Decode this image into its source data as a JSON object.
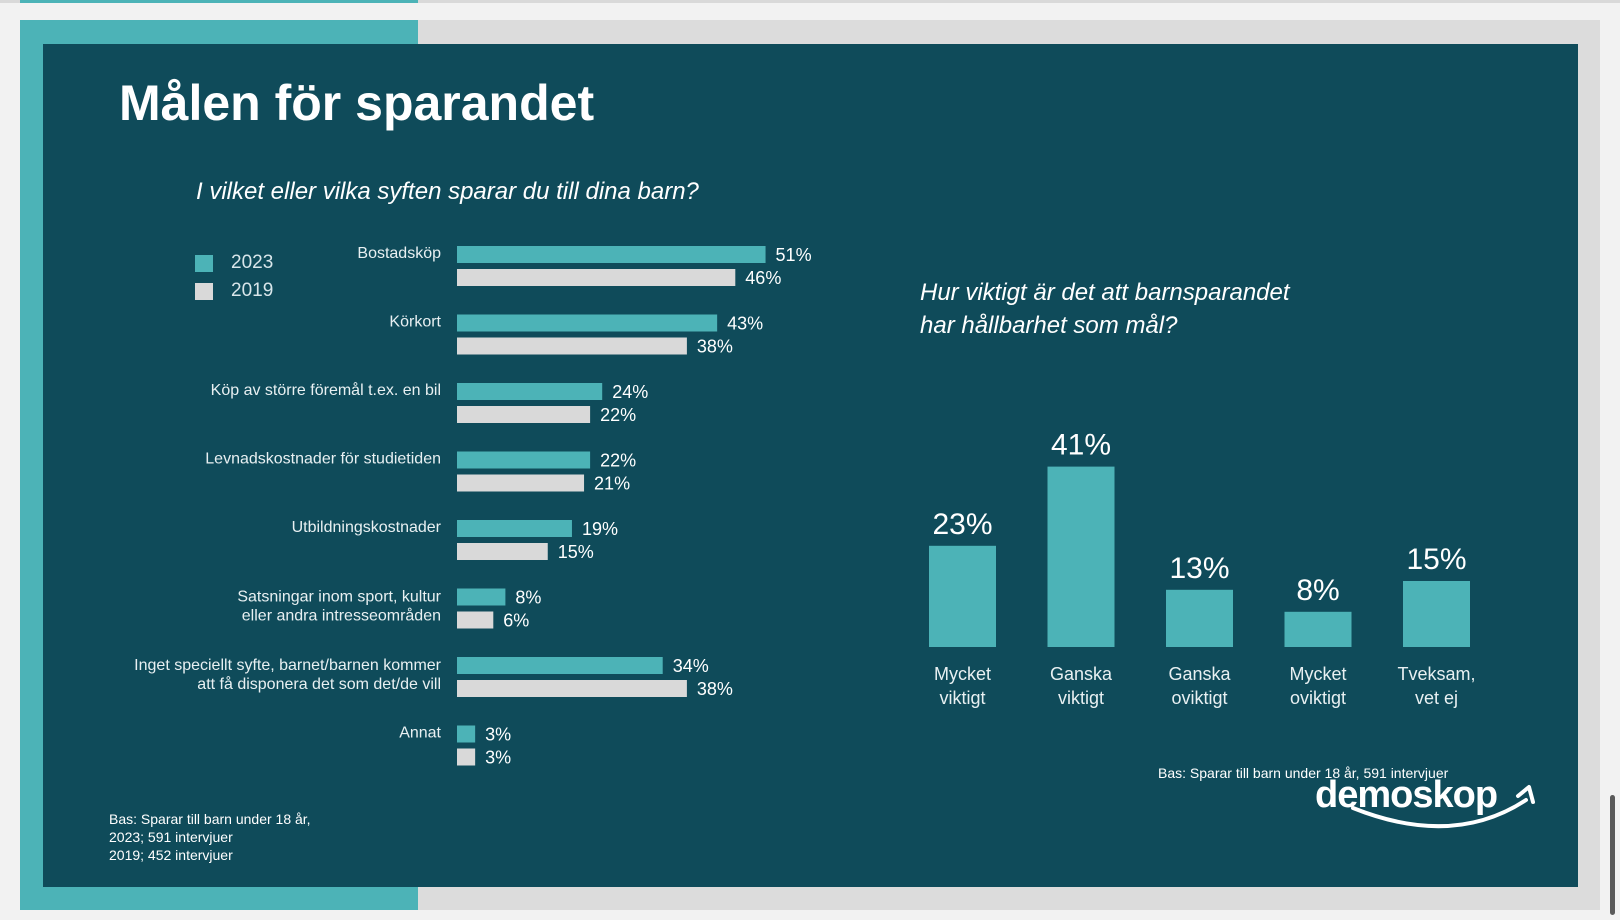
{
  "title": "Målen för sparandet",
  "colors": {
    "series_2023": "#4cb3b7",
    "series_2019": "#d9d9d9",
    "background": "#0f4b5a"
  },
  "chart_data": [
    {
      "type": "bar",
      "orientation": "horizontal",
      "title": "I vilket eller vilka syften sparar du till dina barn?",
      "categories": [
        [
          "Bostadsköp"
        ],
        [
          "Körkort"
        ],
        [
          "Köp av större föremål t.ex. en bil"
        ],
        [
          "Levnadskostnader för studietiden"
        ],
        [
          "Utbildningskostnader"
        ],
        [
          "Satsningar inom sport, kultur",
          "eller andra intresseområden"
        ],
        [
          "Inget speciellt syfte, barnet/barnen kommer",
          "att få disponera det som det/de vill"
        ],
        [
          "Annat"
        ]
      ],
      "series": [
        {
          "name": "2023",
          "values": [
            51,
            43,
            24,
            22,
            19,
            8,
            34,
            3
          ],
          "labels": [
            "51%",
            "43%",
            "24%",
            "22%",
            "19%",
            "8%",
            "34%",
            "3%"
          ]
        },
        {
          "name": "2019",
          "values": [
            46,
            38,
            22,
            21,
            15,
            6,
            38,
            3
          ],
          "labels": [
            "46%",
            "38%",
            "22%",
            "21%",
            "15%",
            "6%",
            "38%",
            "3%"
          ]
        }
      ],
      "xlim": [
        0,
        60
      ],
      "legend": [
        "2023",
        "2019"
      ],
      "legend_position": "top-left",
      "note": [
        "Bas: Sparar till barn under 18 år,",
        "2023; 591 intervjuer",
        "2019; 452 intervjuer"
      ]
    },
    {
      "type": "bar",
      "orientation": "vertical",
      "title": [
        "Hur viktigt är det att barnsparandet",
        "har hållbarhet som mål?"
      ],
      "categories": [
        [
          "Mycket",
          "viktigt"
        ],
        [
          "Ganska",
          "viktigt"
        ],
        [
          "Ganska",
          "oviktigt"
        ],
        [
          "Mycket",
          "oviktigt"
        ],
        [
          "Tveksam,",
          "vet ej"
        ]
      ],
      "values": [
        23,
        41,
        13,
        8,
        15
      ],
      "labels": [
        "23%",
        "41%",
        "13%",
        "8%",
        "15%"
      ],
      "ylim": [
        0,
        45
      ],
      "note": "Bas: Sparar till barn under 18 år, 591 intervjuer"
    }
  ],
  "logo_text": "demoskop"
}
